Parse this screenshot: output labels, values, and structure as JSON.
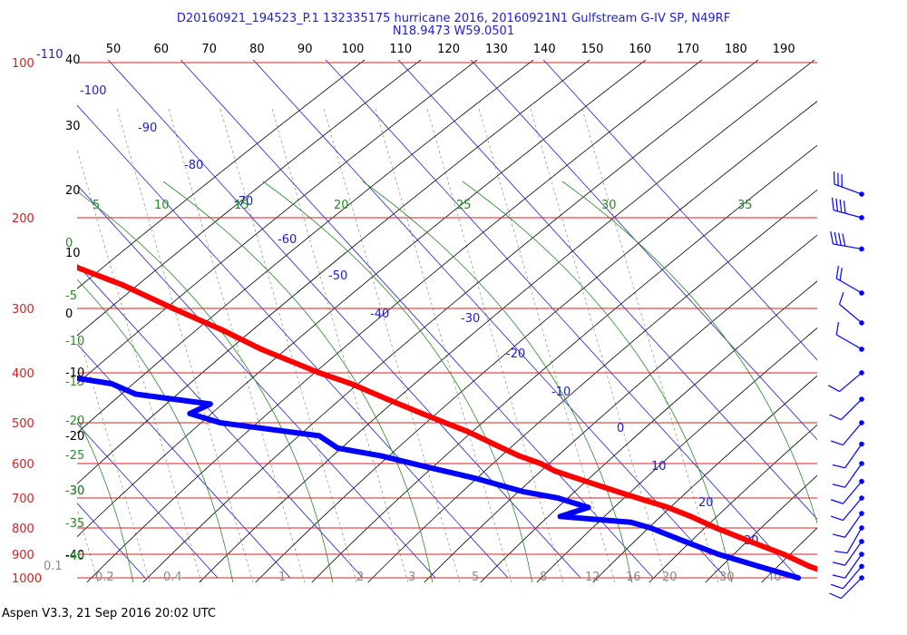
{
  "header": {
    "title_line1": "D20160921_194523_P.1 132335175 hurricane 2016, 20160921N1 Gulfstream G-IV SP, N49RF",
    "title_line2": "N18.9473 W59.0501"
  },
  "footer": {
    "text": "Aspen V3.3, 21 Sep 2016  20:02 UTC"
  },
  "colors": {
    "isobar": "#d42020",
    "pressure_label": "#d42020",
    "isotherm": "#2020c8",
    "dry_adiabat": "#000000",
    "moist_adiabat": "#2a8a2a",
    "mixing_ratio": "#7a9a7a",
    "temperature": "#ff0000",
    "dewpoint": "#0000ff",
    "wind": "#0000ff"
  },
  "chart_data": {
    "type": "skew-t",
    "pressure_levels": [
      100,
      200,
      300,
      400,
      500,
      600,
      700,
      800,
      900,
      1000
    ],
    "pressure_labels": [
      "100",
      "200",
      "300",
      "400",
      "500",
      "600",
      "700",
      "800",
      "900",
      "1000"
    ],
    "top_theta_ticks": [
      50,
      60,
      70,
      80,
      90,
      100,
      110,
      120,
      130,
      140,
      150,
      160,
      170,
      180,
      190
    ],
    "left_theta_ticks": [
      40,
      30,
      20,
      10,
      0,
      -10,
      -20,
      -30,
      -40
    ],
    "isotherm_labels": [
      -110,
      -100,
      -90,
      -80,
      -70,
      -60,
      -50,
      -40,
      -30,
      -20,
      -10,
      0,
      10,
      20,
      30
    ],
    "moist_adiabat_labels": [
      5,
      10,
      15,
      20,
      25,
      30,
      35
    ],
    "left_moist_labels": [
      0,
      -5,
      -10,
      -15,
      -20,
      -25,
      -30,
      -35,
      -40
    ],
    "mixing_ratio_labels": [
      "0.1",
      "0.2",
      "0.4",
      "1",
      "2",
      "3",
      "5",
      "8",
      "12",
      "16",
      "20",
      "30",
      "40"
    ],
    "temperature": {
      "name": "",
      "points": [
        [
          177,
          -54
        ],
        [
          185,
          -52
        ],
        [
          200,
          -48
        ],
        [
          220,
          -45
        ],
        [
          250,
          -40
        ],
        [
          270,
          -36
        ],
        [
          300,
          -32
        ],
        [
          330,
          -28
        ],
        [
          360,
          -25
        ],
        [
          400,
          -20
        ],
        [
          420,
          -17
        ],
        [
          450,
          -14
        ],
        [
          480,
          -11
        ],
        [
          500,
          -9
        ],
        [
          520,
          -7
        ],
        [
          550,
          -5
        ],
        [
          580,
          -3
        ],
        [
          600,
          -1
        ],
        [
          620,
          0
        ],
        [
          650,
          3
        ],
        [
          680,
          6
        ],
        [
          700,
          8
        ],
        [
          730,
          11
        ],
        [
          760,
          13
        ],
        [
          800,
          15
        ],
        [
          850,
          18
        ],
        [
          900,
          21
        ],
        [
          950,
          23
        ],
        [
          1000,
          26
        ]
      ],
      "isolated_points": [
        [
          158,
          -56
        ]
      ]
    },
    "dewpoint": {
      "name": "",
      "points": [
        [
          195,
          -75
        ],
        [
          210,
          -70
        ],
        [
          230,
          -64
        ],
        [
          250,
          -68
        ],
        [
          265,
          -75
        ],
        [
          280,
          -73
        ],
        [
          300,
          -80
        ],
        [
          310,
          -75
        ],
        [
          320,
          -68
        ],
        [
          330,
          -63
        ],
        [
          350,
          -60
        ],
        [
          370,
          -67
        ],
        [
          380,
          -68
        ],
        [
          400,
          -58
        ],
        [
          420,
          -50
        ],
        [
          440,
          -48
        ],
        [
          460,
          -39
        ],
        [
          480,
          -43
        ],
        [
          500,
          -40
        ],
        [
          530,
          -28
        ],
        [
          560,
          -27
        ],
        [
          580,
          -22
        ],
        [
          610,
          -17
        ],
        [
          640,
          -12
        ],
        [
          680,
          -7
        ],
        [
          700,
          -3
        ],
        [
          730,
          0
        ],
        [
          760,
          -5
        ],
        [
          780,
          4
        ],
        [
          800,
          6
        ],
        [
          850,
          9
        ],
        [
          900,
          12
        ],
        [
          950,
          16
        ],
        [
          1000,
          20
        ]
      ]
    },
    "wind_barbs": [
      {
        "p": 180,
        "dir": 290,
        "kt": 30
      },
      {
        "p": 200,
        "dir": 285,
        "kt": 35
      },
      {
        "p": 230,
        "dir": 280,
        "kt": 35
      },
      {
        "p": 280,
        "dir": 300,
        "kt": 15
      },
      {
        "p": 320,
        "dir": 310,
        "kt": 10
      },
      {
        "p": 360,
        "dir": 300,
        "kt": 10
      },
      {
        "p": 400,
        "dir": 230,
        "kt": 10
      },
      {
        "p": 450,
        "dir": 225,
        "kt": 10
      },
      {
        "p": 500,
        "dir": 220,
        "kt": 10
      },
      {
        "p": 550,
        "dir": 215,
        "kt": 10
      },
      {
        "p": 600,
        "dir": 215,
        "kt": 10
      },
      {
        "p": 650,
        "dir": 220,
        "kt": 10
      },
      {
        "p": 700,
        "dir": 220,
        "kt": 10
      },
      {
        "p": 750,
        "dir": 215,
        "kt": 10
      },
      {
        "p": 800,
        "dir": 210,
        "kt": 10
      },
      {
        "p": 850,
        "dir": 215,
        "kt": 10
      },
      {
        "p": 900,
        "dir": 215,
        "kt": 10
      },
      {
        "p": 950,
        "dir": 220,
        "kt": 10
      },
      {
        "p": 1000,
        "dir": 225,
        "kt": 10
      }
    ]
  }
}
